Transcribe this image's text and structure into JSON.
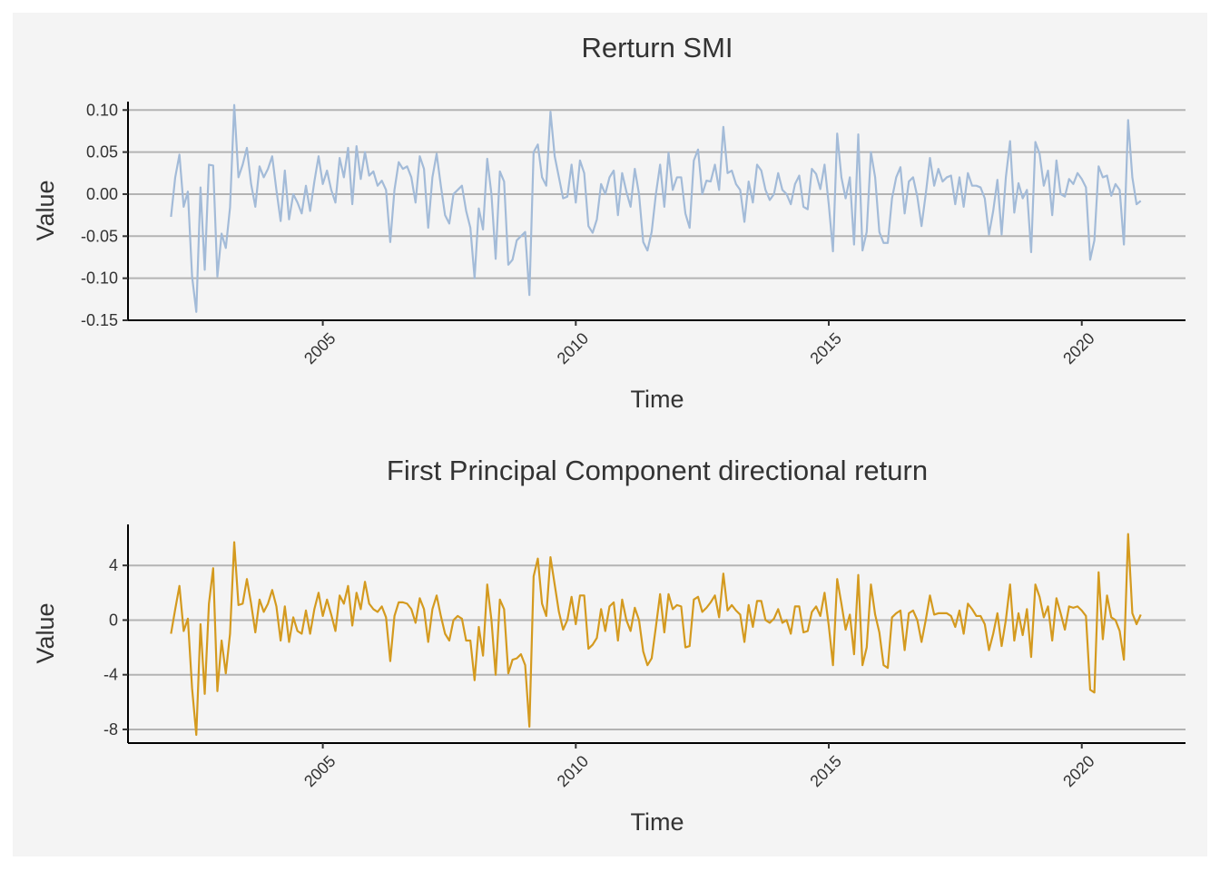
{
  "chart_data": [
    {
      "type": "line",
      "title": "Rerturn SMI",
      "xlabel": "Time",
      "ylabel": "Value",
      "color": "#a3bbd8",
      "xlim": [
        2001.15,
        2022.05
      ],
      "ylim": [
        -0.15,
        0.11
      ],
      "x_ticks": [
        2005,
        2010,
        2015,
        2020
      ],
      "x_tick_labels": [
        "2005",
        "2010",
        "2015",
        "2020"
      ],
      "y_ticks": [
        -0.15,
        -0.1,
        -0.05,
        0.0,
        0.05,
        0.1
      ],
      "y_tick_labels": [
        "-0.15",
        "-0.10",
        "-0.05",
        "0.00",
        "0.05",
        "0.10"
      ],
      "grid": "horizontal",
      "series": [
        {
          "x_start": 2002.0,
          "x_step": 0.08333,
          "values": [
            -0.027,
            0.02,
            0.047,
            -0.015,
            0.003,
            -0.098,
            -0.14,
            0.008,
            -0.09,
            0.035,
            0.034,
            -0.098,
            -0.047,
            -0.064,
            -0.016,
            0.106,
            0.02,
            0.035,
            0.055,
            0.012,
            -0.015,
            0.033,
            0.02,
            0.03,
            0.045,
            0.005,
            -0.032,
            0.028,
            -0.03,
            0.0,
            -0.01,
            -0.023,
            0.01,
            -0.02,
            0.015,
            0.045,
            0.012,
            0.028,
            0.005,
            -0.01,
            0.043,
            0.02,
            0.055,
            -0.012,
            0.057,
            0.018,
            0.05,
            0.022,
            0.027,
            0.01,
            0.016,
            0.005,
            -0.057,
            0.005,
            0.038,
            0.03,
            0.033,
            0.02,
            -0.01,
            0.045,
            0.03,
            -0.04,
            0.02,
            0.048,
            0.01,
            -0.025,
            -0.035,
            0.0,
            0.005,
            0.01,
            -0.02,
            -0.04,
            -0.1,
            -0.017,
            -0.042,
            0.042,
            0.0,
            -0.077,
            0.027,
            0.015,
            -0.084,
            -0.078,
            -0.055,
            -0.05,
            -0.045,
            -0.12,
            0.05,
            0.059,
            0.02,
            0.01,
            0.098,
            0.045,
            0.02,
            -0.005,
            -0.003,
            0.035,
            -0.01,
            0.04,
            0.025,
            -0.038,
            -0.046,
            -0.03,
            0.012,
            0.0,
            0.02,
            0.028,
            -0.025,
            0.025,
            0.003,
            -0.015,
            0.03,
            0.0,
            -0.057,
            -0.067,
            -0.045,
            0.0,
            0.035,
            -0.015,
            0.049,
            0.005,
            0.02,
            0.02,
            -0.023,
            -0.04,
            0.04,
            0.053,
            0.0,
            0.016,
            0.015,
            0.035,
            0.005,
            0.08,
            0.025,
            0.028,
            0.012,
            0.005,
            -0.033,
            0.015,
            -0.01,
            0.035,
            0.028,
            0.005,
            -0.007,
            0.0,
            0.025,
            0.005,
            0.0,
            -0.012,
            0.012,
            0.022,
            -0.015,
            -0.018,
            0.03,
            0.024,
            0.006,
            0.035,
            -0.012,
            -0.068,
            0.072,
            0.02,
            -0.005,
            0.02,
            -0.06,
            0.071,
            -0.067,
            -0.045,
            0.05,
            0.02,
            -0.045,
            -0.058,
            -0.058,
            -0.005,
            0.02,
            0.032,
            -0.023,
            0.015,
            0.02,
            -0.003,
            -0.038,
            0.0,
            0.043,
            0.01,
            0.03,
            0.015,
            0.02,
            0.022,
            -0.012,
            0.02,
            -0.015,
            0.025,
            0.01,
            0.01,
            0.008,
            -0.005,
            -0.048,
            -0.02,
            0.017,
            -0.048,
            0.02,
            0.063,
            -0.022,
            0.013,
            -0.005,
            0.005,
            -0.069,
            0.062,
            0.048,
            0.01,
            0.028,
            -0.025,
            0.04,
            0.0,
            -0.003,
            0.018,
            0.012,
            0.025,
            0.018,
            0.008,
            -0.078,
            -0.055,
            0.033,
            0.02,
            0.022,
            -0.002,
            0.012,
            0.005,
            -0.06,
            0.088,
            0.02,
            -0.012,
            -0.008
          ]
        }
      ]
    },
    {
      "type": "line",
      "title": "First Principal Component directional return",
      "xlabel": "Time",
      "ylabel": "Value",
      "color": "#d49a1f",
      "xlim": [
        2001.15,
        2022.05
      ],
      "ylim": [
        -9.0,
        7.0
      ],
      "x_ticks": [
        2005,
        2010,
        2015,
        2020
      ],
      "x_tick_labels": [
        "2005",
        "2010",
        "2015",
        "2020"
      ],
      "y_ticks": [
        -8,
        -4,
        0,
        4
      ],
      "y_tick_labels": [
        "-8",
        "-4",
        "0",
        "4"
      ],
      "grid": "horizontal",
      "series": [
        {
          "x_start": 2002.0,
          "x_step": 0.08333,
          "values": [
            -1.0,
            0.8,
            2.5,
            -0.8,
            0.1,
            -5.0,
            -8.4,
            -0.3,
            -5.4,
            1.2,
            3.8,
            -5.2,
            -1.5,
            -3.9,
            -1.0,
            5.7,
            1.1,
            1.2,
            3.0,
            1.2,
            -0.9,
            1.5,
            0.6,
            1.2,
            2.2,
            1.0,
            -1.5,
            1.0,
            -1.6,
            0.2,
            -0.8,
            -1.0,
            0.7,
            -1.0,
            0.8,
            2.0,
            0.3,
            1.5,
            0.4,
            -0.8,
            1.8,
            1.2,
            2.5,
            -0.4,
            2.0,
            0.8,
            2.8,
            1.2,
            0.8,
            0.6,
            1.0,
            0.2,
            -3.0,
            0.3,
            1.3,
            1.3,
            1.2,
            0.8,
            -0.2,
            1.6,
            0.8,
            -1.6,
            0.8,
            1.8,
            0.3,
            -1.0,
            -1.5,
            0.0,
            0.3,
            0.1,
            -1.5,
            -1.5,
            -4.4,
            -0.5,
            -2.6,
            2.6,
            0.0,
            -4.0,
            1.5,
            0.8,
            -3.9,
            -2.9,
            -2.8,
            -2.5,
            -3.3,
            -7.8,
            3.2,
            4.5,
            1.2,
            0.3,
            4.6,
            2.6,
            0.6,
            -0.7,
            0.0,
            1.7,
            -0.3,
            1.8,
            1.8,
            -2.1,
            -1.8,
            -1.3,
            0.8,
            -0.8,
            1.0,
            1.3,
            -1.5,
            1.5,
            0.0,
            -0.8,
            0.9,
            0.0,
            -2.3,
            -3.3,
            -2.8,
            -0.5,
            1.9,
            -0.9,
            1.9,
            0.8,
            1.1,
            1.0,
            -2.0,
            -1.9,
            1.5,
            1.7,
            0.6,
            0.9,
            1.3,
            1.8,
            0.2,
            3.4,
            0.7,
            1.1,
            0.7,
            0.4,
            -1.6,
            1.1,
            -0.5,
            1.4,
            1.4,
            0.0,
            -0.2,
            0.1,
            0.8,
            -0.2,
            0.0,
            -1.0,
            1.0,
            1.0,
            -0.9,
            -0.8,
            0.6,
            1.0,
            0.3,
            2.0,
            -0.4,
            -3.3,
            3.0,
            1.2,
            -0.7,
            0.4,
            -2.5,
            3.3,
            -3.3,
            -2.0,
            2.6,
            0.4,
            -0.9,
            -3.3,
            -3.5,
            0.2,
            0.5,
            0.7,
            -2.2,
            0.5,
            0.7,
            0.0,
            -1.6,
            0.0,
            1.8,
            0.4,
            0.5,
            0.5,
            0.5,
            0.3,
            -0.5,
            0.7,
            -1.0,
            1.2,
            0.8,
            0.3,
            0.3,
            -0.3,
            -2.2,
            -1.0,
            0.5,
            -1.9,
            0.0,
            2.6,
            -1.5,
            0.5,
            -1.1,
            0.8,
            -2.7,
            2.6,
            1.7,
            0.2,
            1.0,
            -1.5,
            1.6,
            0.5,
            -0.7,
            1.0,
            0.9,
            1.0,
            0.7,
            0.3,
            -5.1,
            -5.3,
            3.5,
            -1.4,
            1.8,
            0.2,
            0.0,
            -0.8,
            -2.9,
            6.3,
            0.5,
            -0.3,
            0.4
          ]
        }
      ]
    }
  ]
}
